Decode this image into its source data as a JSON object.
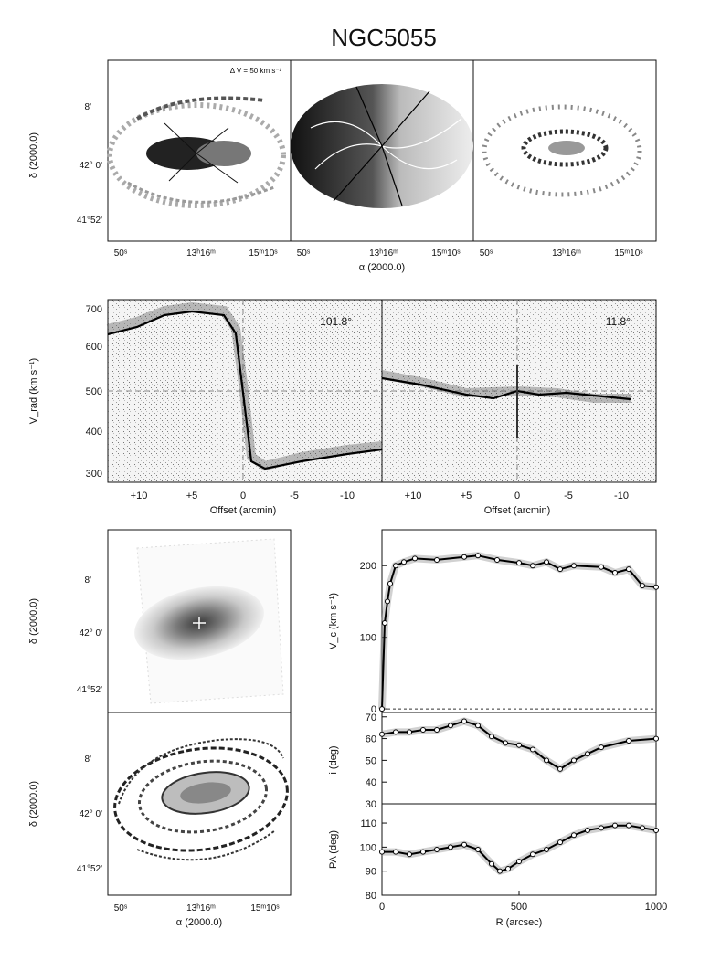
{
  "title": "NGC5055",
  "top_row": {
    "delta_v_label": "Δ V = 50 km s⁻¹",
    "y_axis_label": "δ (2000.0)",
    "x_axis_label": "α (2000.0)",
    "y_ticks": [
      "8'",
      "42° 0'",
      "41°52'"
    ],
    "x_ticks": [
      "50ˢ",
      "13ʰ16ᵐ",
      "15ᵐ10ˢ"
    ]
  },
  "pv_row": {
    "y_axis_label": "V_rad (km s⁻¹)",
    "x_axis_label": "Offset (arcmin)",
    "left_angle": "101.8°",
    "right_angle": "11.8°",
    "y_ticks": [
      "700",
      "600",
      "500",
      "400",
      "300"
    ],
    "x_ticks": [
      "+10",
      "+5",
      "0",
      "-5",
      "-10"
    ]
  },
  "bottom_left": {
    "y_axis_label": "δ (2000.0)",
    "x_axis_label": "α (2000.0)",
    "y_ticks": [
      "8'",
      "42° 0'",
      "41°52'"
    ],
    "x_ticks": [
      "50ˢ",
      "13ʰ16ᵐ",
      "15ᵐ10ˢ"
    ]
  },
  "chart_data": [
    {
      "type": "line",
      "title": "",
      "xlabel": "",
      "ylabel": "V_c (km s⁻¹)",
      "xlim": [
        0,
        1000
      ],
      "ylim": [
        -5,
        250
      ],
      "yticks": [
        0,
        100,
        200
      ],
      "x": [
        0,
        10,
        20,
        30,
        50,
        80,
        120,
        200,
        300,
        350,
        420,
        500,
        550,
        600,
        650,
        700,
        800,
        850,
        900,
        950,
        1000
      ],
      "series": [
        {
          "values": [
            0,
            120,
            150,
            175,
            200,
            205,
            210,
            208,
            212,
            214,
            208,
            204,
            200,
            205,
            195,
            200,
            198,
            190,
            195,
            172,
            170
          ]
        }
      ]
    },
    {
      "type": "line",
      "title": "",
      "xlabel": "",
      "ylabel": "i (deg)",
      "xlim": [
        0,
        1000
      ],
      "ylim": [
        30,
        72
      ],
      "yticks": [
        30,
        40,
        50,
        60,
        70
      ],
      "x": [
        0,
        50,
        100,
        150,
        200,
        250,
        300,
        350,
        400,
        450,
        500,
        550,
        600,
        650,
        700,
        750,
        800,
        900,
        1000
      ],
      "series": [
        {
          "values": [
            62,
            63,
            63,
            64,
            64,
            66,
            68,
            66,
            61,
            58,
            57,
            55,
            50,
            46,
            50,
            53,
            56,
            59,
            60
          ]
        }
      ]
    },
    {
      "type": "line",
      "title": "",
      "xlabel": "R (arcsec)",
      "ylabel": "PA (deg)",
      "xlim": [
        0,
        1000
      ],
      "ylim": [
        80,
        118
      ],
      "yticks": [
        80,
        90,
        100,
        110
      ],
      "xticks": [
        0,
        500,
        1000
      ],
      "x": [
        0,
        50,
        100,
        150,
        200,
        250,
        300,
        350,
        400,
        430,
        460,
        500,
        550,
        600,
        650,
        700,
        750,
        800,
        850,
        900,
        950,
        1000
      ],
      "series": [
        {
          "values": [
            98,
            98,
            97,
            98,
            99,
            100,
            101,
            99,
            93,
            90,
            91,
            94,
            97,
            99,
            102,
            105,
            107,
            108,
            109,
            109,
            108,
            107
          ]
        }
      ]
    }
  ]
}
